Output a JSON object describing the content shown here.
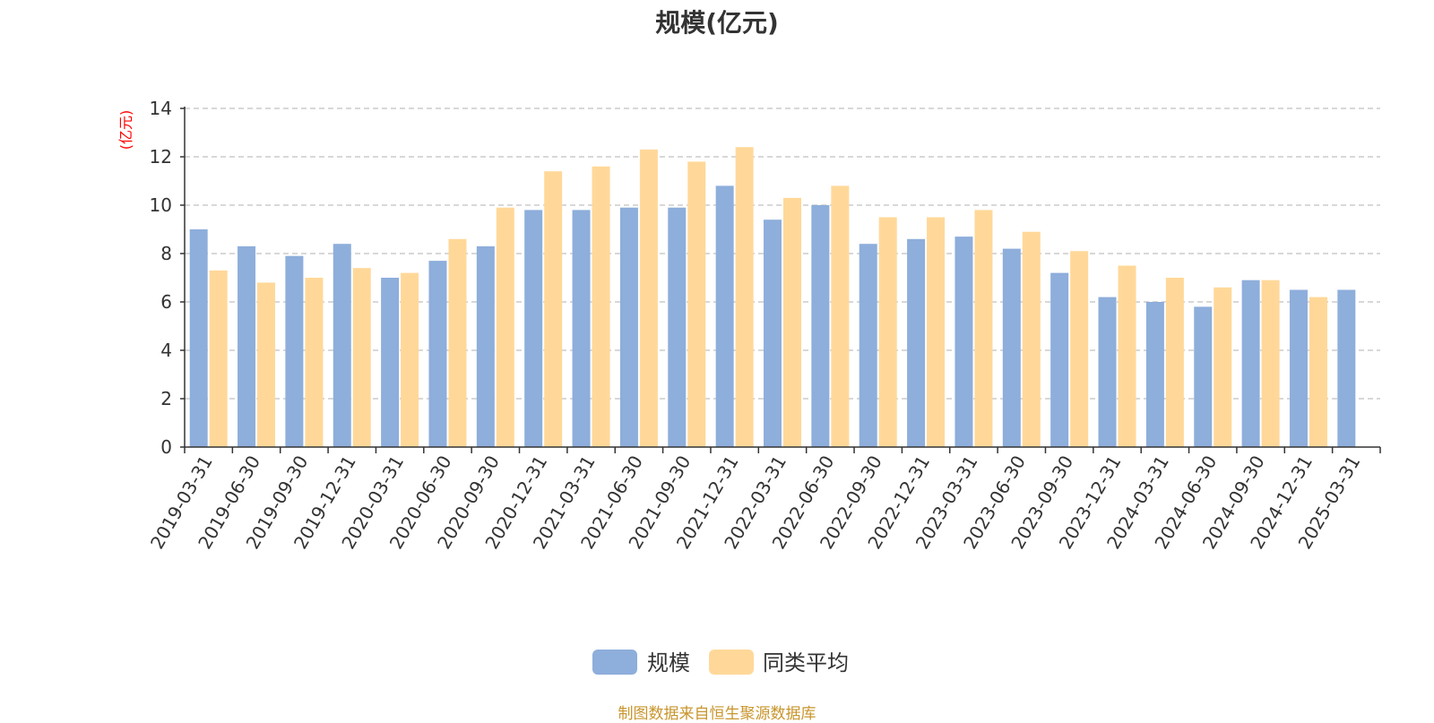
{
  "chart_data": {
    "type": "bar",
    "title": "规模(亿元)",
    "ylabel": "(亿元)",
    "xlabel": "",
    "ylim": [
      0,
      14
    ],
    "yticks": [
      0,
      2,
      4,
      6,
      8,
      10,
      12,
      14
    ],
    "grid": true,
    "legend_position": "bottom-center",
    "categories": [
      "2019-03-31",
      "2019-06-30",
      "2019-09-30",
      "2019-12-31",
      "2020-03-31",
      "2020-06-30",
      "2020-09-30",
      "2020-12-31",
      "2021-03-31",
      "2021-06-30",
      "2021-09-30",
      "2021-12-31",
      "2022-03-31",
      "2022-06-30",
      "2022-09-30",
      "2022-12-31",
      "2023-03-31",
      "2023-06-30",
      "2023-09-30",
      "2023-12-31",
      "2024-03-31",
      "2024-06-30",
      "2024-09-30",
      "2024-12-31",
      "2025-03-31"
    ],
    "series": [
      {
        "name": "规模",
        "color": "#8eaedb",
        "values": [
          9.0,
          8.3,
          7.9,
          8.4,
          7.0,
          7.7,
          8.3,
          9.8,
          9.8,
          9.9,
          9.9,
          10.8,
          9.4,
          10.0,
          8.4,
          8.6,
          8.7,
          8.2,
          7.2,
          6.2,
          6.0,
          5.8,
          6.9,
          6.5,
          6.5
        ]
      },
      {
        "name": "同类平均",
        "color": "#ffd899",
        "values": [
          7.3,
          6.8,
          7.0,
          7.4,
          7.2,
          8.6,
          9.9,
          11.4,
          11.6,
          12.3,
          11.8,
          12.4,
          10.3,
          10.8,
          9.5,
          9.5,
          9.8,
          8.9,
          8.1,
          7.5,
          7.0,
          6.6,
          6.9,
          6.2,
          null
        ]
      }
    ]
  },
  "source_note": "制图数据来自恒生聚源数据库",
  "colors": {
    "axis": "#333333",
    "grid": "#cccccc",
    "unit_label": "#ff0000",
    "source_note": "#c8952c"
  }
}
